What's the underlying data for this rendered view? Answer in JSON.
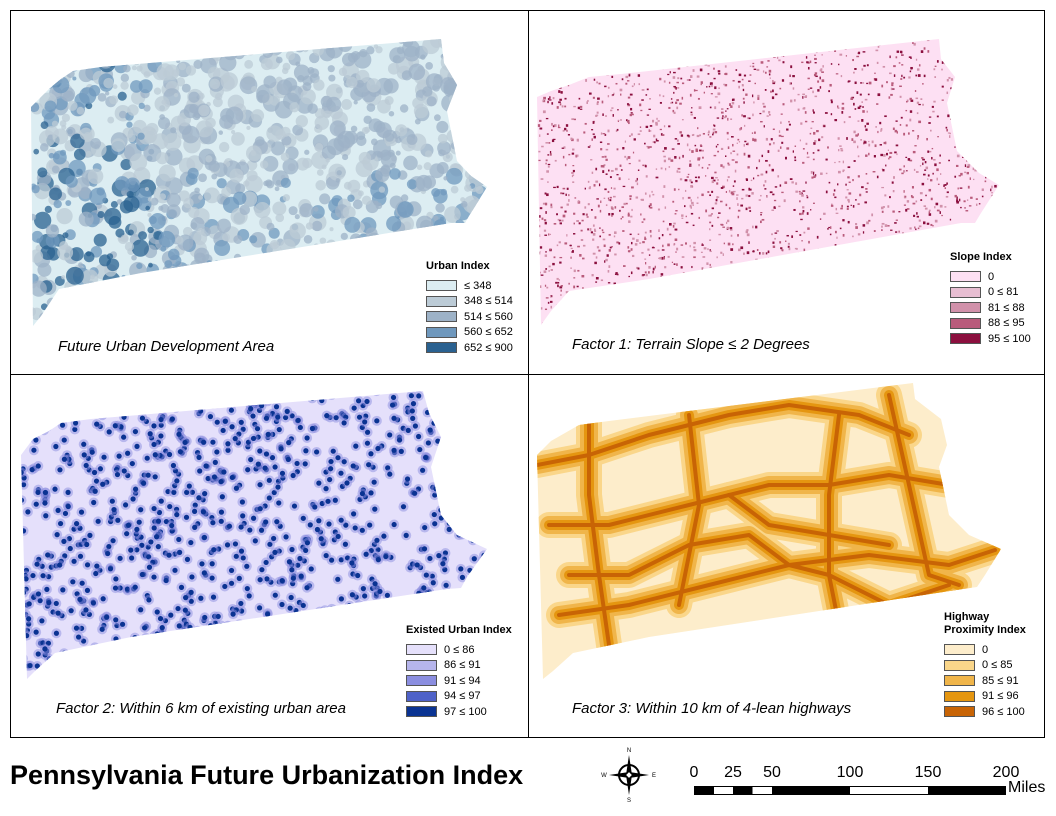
{
  "title": "Pennsylvania Future Urbanization Index",
  "panels": [
    {
      "id": "urban",
      "caption": "Future Urban Development Area",
      "legend_title": "Urban Index",
      "legend": [
        {
          "label": "≤ 348",
          "color": "#dcedf2"
        },
        {
          "label": "348 ≤ 514",
          "color": "#bccbd6"
        },
        {
          "label": "514 ≤ 560",
          "color": "#9db2c7"
        },
        {
          "label": "560 ≤ 652",
          "color": "#6f98bd"
        },
        {
          "label": "652 ≤ 900",
          "color": "#2a6190"
        }
      ]
    },
    {
      "id": "slope",
      "caption": "Factor 1: Terrain Slope ≤ 2 Degrees",
      "legend_title": "Slope Index",
      "legend": [
        {
          "label": "0",
          "color": "#fde0f3"
        },
        {
          "label": "0 ≤ 81",
          "color": "#e8bed2"
        },
        {
          "label": "81 ≤ 88",
          "color": "#d191aa"
        },
        {
          "label": "88 ≤ 95",
          "color": "#b95b7b"
        },
        {
          "label": "95 ≤ 100",
          "color": "#8b0f3e"
        }
      ]
    },
    {
      "id": "existing",
      "caption": "Factor 2: Within 6 km of existing urban area",
      "legend_title": "Existed Urban Index",
      "legend": [
        {
          "label": "0 ≤ 86",
          "color": "#e5e0fb"
        },
        {
          "label": "86 ≤ 91",
          "color": "#b6b5ec"
        },
        {
          "label": "91 ≤ 94",
          "color": "#8b8ee0"
        },
        {
          "label": "94 ≤ 97",
          "color": "#4f62c8"
        },
        {
          "label": "97 ≤ 100",
          "color": "#0a3392"
        }
      ]
    },
    {
      "id": "highway",
      "caption": "Factor 3: Within 10 km of 4-lean highways",
      "legend_title": "Highway\nProximity Index",
      "legend": [
        {
          "label": "0",
          "color": "#fdedcb"
        },
        {
          "label": "0 ≤ 85",
          "color": "#fad68a"
        },
        {
          "label": "85 ≤ 91",
          "color": "#f0b54a"
        },
        {
          "label": "91 ≤ 96",
          "color": "#e59610"
        },
        {
          "label": "96 ≤ 100",
          "color": "#c86405"
        }
      ]
    }
  ],
  "north_arrow": {
    "n": "N",
    "s": "S",
    "e": "E",
    "w": "W"
  },
  "scale": {
    "ticks": [
      "0",
      "25",
      "50",
      "100",
      "150",
      "200"
    ],
    "units": "Miles"
  }
}
